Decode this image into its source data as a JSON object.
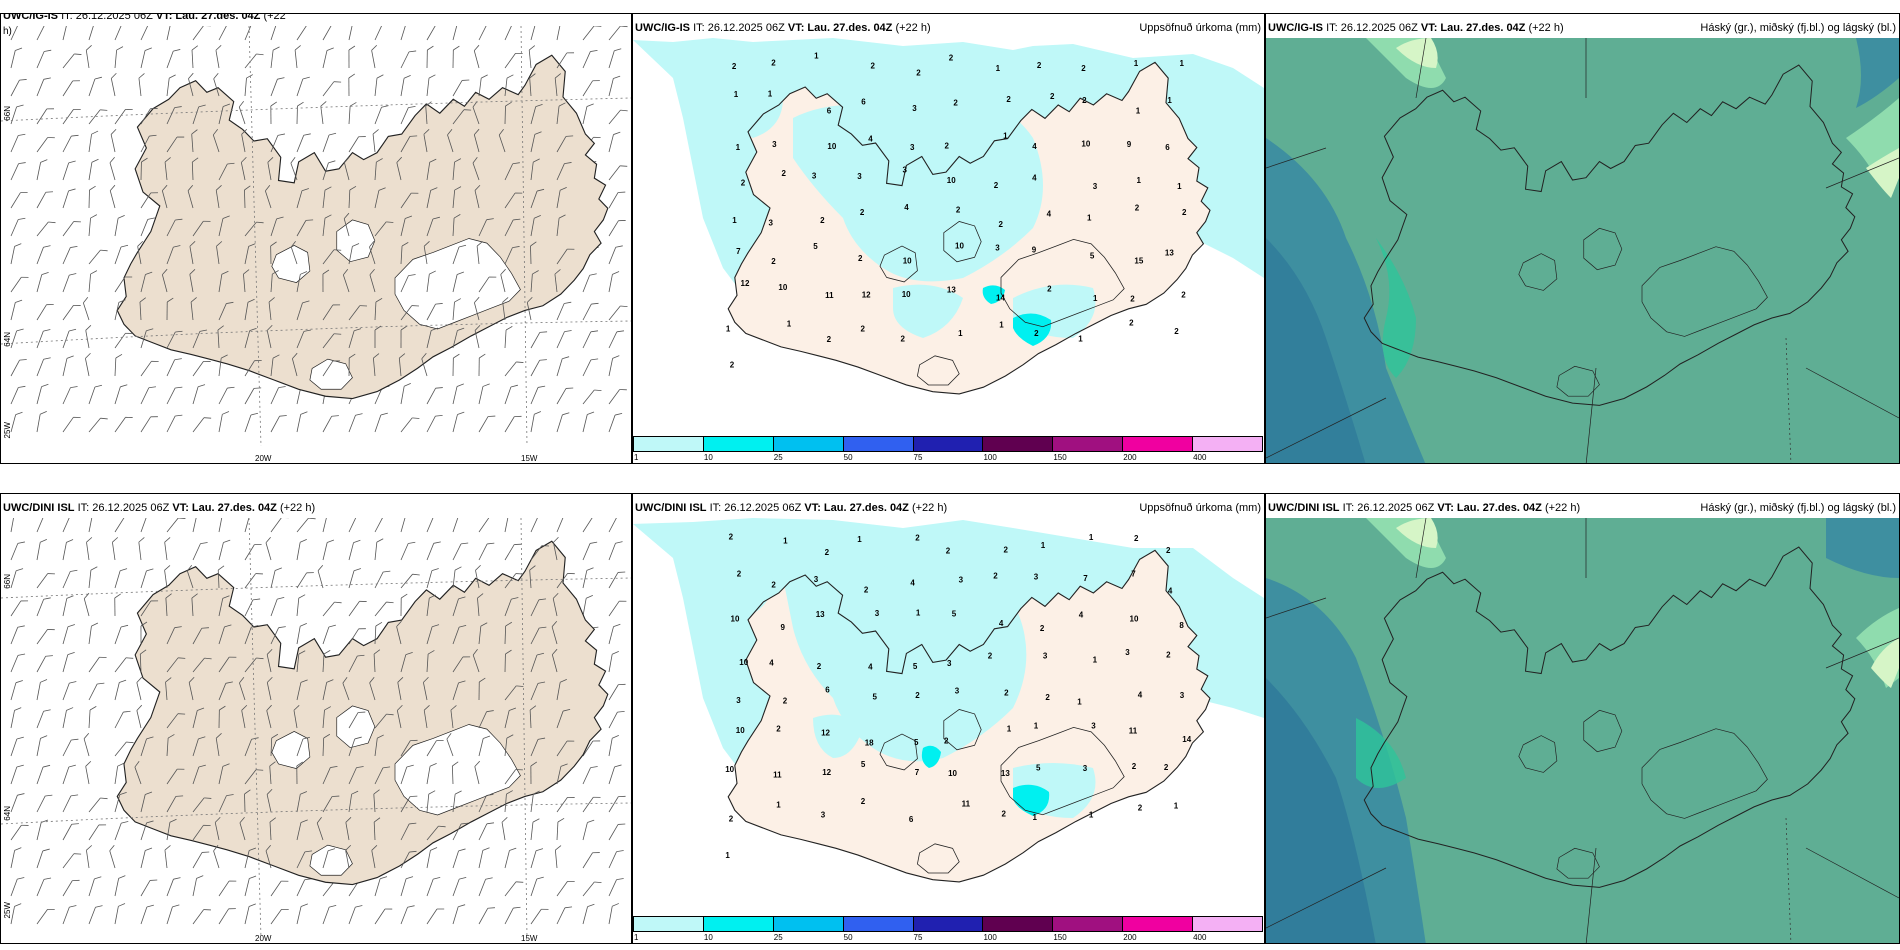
{
  "rows": [
    {
      "id": "row1",
      "wind": {
        "model": "UWC/IG-IS",
        "it": "IT: 26.12.2025 06Z",
        "vt": "VT: Lau. 27.des. 04Z",
        "lead": "(+22",
        "wrap": "h)"
      },
      "precip": {
        "model": "UWC/IG-IS",
        "it": "IT: 26.12.2025 06Z",
        "vt": "VT: Lau. 27.des. 04Z",
        "lead": "(+22 h)",
        "field": "Uppsöfnuð úrkoma (mm)"
      },
      "cloud": {
        "model": "UWC/IG-IS",
        "it": "IT: 26.12.2025 06Z",
        "vt": "VT: Lau. 27.des. 04Z",
        "lead": "(+22 h)",
        "field": "Háský (gr.), miðský (fj.bl.) og lágský (bl.)"
      }
    },
    {
      "id": "row2",
      "wind": {
        "model": "UWC/DINI ISL",
        "it": "IT: 26.12.2025 06Z",
        "vt": "VT: Lau. 27.des. 04Z",
        "lead": "(+22 h)",
        "wrap": ""
      },
      "precip": {
        "model": "UWC/DINI ISL",
        "it": "IT: 26.12.2025 06Z",
        "vt": "VT: Lau. 27.des. 04Z",
        "lead": "(+22 h)",
        "field": "Uppsöfnuð úrkoma (mm)"
      },
      "cloud": {
        "model": "UWC/DINI ISL",
        "it": "IT: 26.12.2025 06Z",
        "vt": "VT: Lau. 27.des. 04Z",
        "lead": "(+22 h)",
        "field": "Háský (gr.), miðský (fj.bl.) og lágský (bl.)"
      }
    }
  ],
  "grid_labels": {
    "lat_66": "66N",
    "lat_64": "64N",
    "lon_25": "25W",
    "lon_20": "20W",
    "lon_15": "15W"
  },
  "colorbar": {
    "colors": [
      "#bff8f8",
      "#00f0f0",
      "#00c0f0",
      "#3060f0",
      "#2020b0",
      "#600050",
      "#a01080",
      "#f000a0",
      "#f4b0f4"
    ],
    "ticks": [
      "1",
      "10",
      "25",
      "50",
      "75",
      "100",
      "150",
      "200",
      "400"
    ]
  },
  "precip_values_row1": [
    "2",
    "2",
    "1",
    "2",
    "2",
    "2",
    "1",
    "2",
    "2",
    "1",
    "1",
    "1",
    "1",
    "6",
    "6",
    "3",
    "2",
    "2",
    "2",
    "2",
    "1",
    "1",
    "1",
    "3",
    "10",
    "4",
    "3",
    "2",
    "1",
    "4",
    "10",
    "9",
    "6",
    "2",
    "2",
    "3",
    "3",
    "3",
    "10",
    "2",
    "4",
    "3",
    "1",
    "1",
    "1",
    "3",
    "2",
    "2",
    "4",
    "2",
    "2",
    "4",
    "1",
    "2",
    "2",
    "7",
    "2",
    "5",
    "2",
    "10",
    "10",
    "3",
    "9",
    "5",
    "15",
    "13",
    "12",
    "10",
    "11",
    "12",
    "10",
    "13",
    "14",
    "2",
    "1",
    "2",
    "2",
    "1",
    "1",
    "2",
    "2",
    "2",
    "1",
    "1",
    "2",
    "1",
    "2",
    "2",
    "2"
  ],
  "precip_values_row2": [
    "2",
    "1",
    "2",
    "1",
    "2",
    "2",
    "2",
    "1",
    "1",
    "2",
    "2",
    "2",
    "2",
    "3",
    "2",
    "4",
    "3",
    "2",
    "3",
    "7",
    "7",
    "4",
    "10",
    "9",
    "13",
    "3",
    "1",
    "5",
    "4",
    "2",
    "4",
    "10",
    "8",
    "10",
    "4",
    "2",
    "4",
    "5",
    "3",
    "2",
    "3",
    "1",
    "3",
    "2",
    "3",
    "2",
    "6",
    "5",
    "2",
    "3",
    "2",
    "2",
    "1",
    "4",
    "3",
    "10",
    "2",
    "12",
    "18",
    "5",
    "2",
    "1",
    "1",
    "3",
    "11",
    "14",
    "10",
    "11",
    "12",
    "5",
    "7",
    "10",
    "13",
    "5",
    "3",
    "2",
    "2",
    "2",
    "1",
    "3",
    "2",
    "6",
    "11",
    "2",
    "1",
    "1",
    "2",
    "1",
    "1"
  ],
  "colors": {
    "land_wind": "#ecdfcf",
    "land_precip": "#fcf0e6",
    "cloud_base": "#5fae94"
  }
}
